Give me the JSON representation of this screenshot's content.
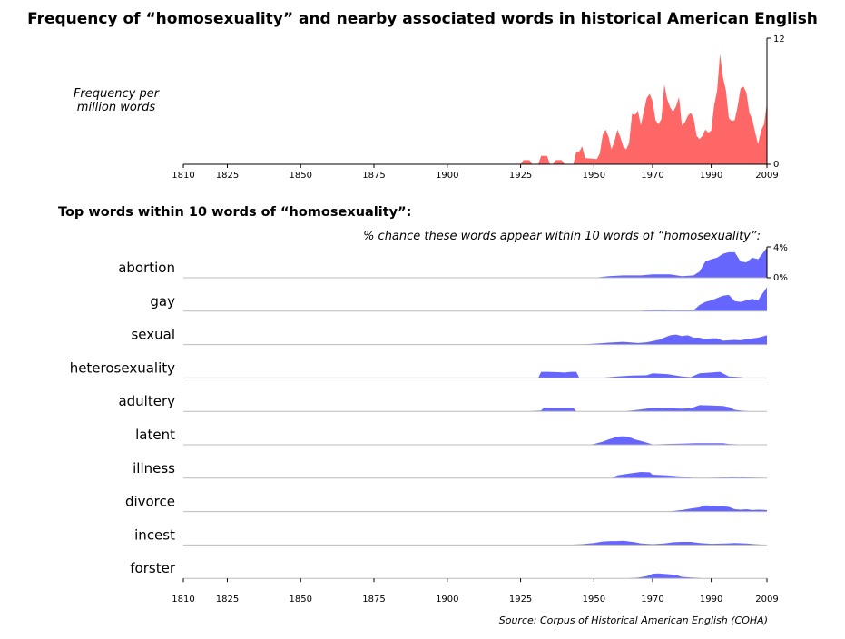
{
  "title": "Frequency of “homosexuality” and nearby associated words in historical American English",
  "top_ylabel_line1": "Frequency per",
  "top_ylabel_line2": "million words",
  "subtitle": "Top words within 10 words of “homosexuality”:",
  "pct_label": "% chance these words appear within 10 words of “homosexuality”:",
  "source": "Source: Corpus of Historical American English (COHA)",
  "colors": {
    "frequency": "#ff6666",
    "association": "#6666ff",
    "baseline": "#bbbbbb"
  },
  "chart_data": [
    {
      "type": "area",
      "xlim": [
        1810,
        2009
      ],
      "ylim": [
        0,
        12
      ],
      "x_ticks": [
        1810,
        1825,
        1850,
        1875,
        1900,
        1925,
        1950,
        1970,
        1990,
        2009
      ],
      "y_ticks": [
        "0",
        "12"
      ],
      "series": [
        {
          "points": [
            [
              1810,
              0
            ],
            [
              1925,
              0
            ],
            [
              1926,
              0.4
            ],
            [
              1928,
              0.4
            ],
            [
              1929,
              0
            ],
            [
              1931,
              0
            ],
            [
              1932,
              0.8
            ],
            [
              1934,
              0.8
            ],
            [
              1935,
              0
            ],
            [
              1936,
              0
            ],
            [
              1937,
              0.4
            ],
            [
              1939,
              0.4
            ],
            [
              1940,
              0
            ],
            [
              1943,
              0
            ],
            [
              1944,
              1.2
            ],
            [
              1945,
              1.2
            ],
            [
              1946,
              1.7
            ],
            [
              1947,
              0.6
            ],
            [
              1951,
              0.5
            ],
            [
              1952,
              1
            ],
            [
              1953,
              2.8
            ],
            [
              1954,
              3.3
            ],
            [
              1955,
              2.6
            ],
            [
              1956,
              1.4
            ],
            [
              1957,
              2.2
            ],
            [
              1958,
              3.3
            ],
            [
              1959,
              2.6
            ],
            [
              1960,
              1.7
            ],
            [
              1961,
              1.4
            ],
            [
              1962,
              2
            ],
            [
              1963,
              4.8
            ],
            [
              1964,
              4.7
            ],
            [
              1965,
              5.1
            ],
            [
              1966,
              3.7
            ],
            [
              1967,
              5
            ],
            [
              1968,
              6.3
            ],
            [
              1969,
              6.7
            ],
            [
              1970,
              6
            ],
            [
              1971,
              4.2
            ],
            [
              1972,
              3.8
            ],
            [
              1973,
              4.3
            ],
            [
              1974,
              7.6
            ],
            [
              1975,
              6.2
            ],
            [
              1976,
              5.4
            ],
            [
              1977,
              5
            ],
            [
              1978,
              5.5
            ],
            [
              1979,
              6.4
            ],
            [
              1980,
              3.7
            ],
            [
              1981,
              4
            ],
            [
              1982,
              4.6
            ],
            [
              1983,
              4.9
            ],
            [
              1984,
              4.4
            ],
            [
              1985,
              2.7
            ],
            [
              1986,
              2.4
            ],
            [
              1987,
              2.7
            ],
            [
              1988,
              3.3
            ],
            [
              1989,
              3
            ],
            [
              1990,
              3.2
            ],
            [
              1991,
              5.6
            ],
            [
              1992,
              7
            ],
            [
              1993,
              10.5
            ],
            [
              1994,
              8.3
            ],
            [
              1995,
              7
            ],
            [
              1996,
              4.4
            ],
            [
              1997,
              4.1
            ],
            [
              1998,
              4.2
            ],
            [
              1999,
              5.5
            ],
            [
              2000,
              7.2
            ],
            [
              2001,
              7.4
            ],
            [
              2002,
              6.8
            ],
            [
              2003,
              4.9
            ],
            [
              2004,
              4.3
            ],
            [
              2005,
              3
            ],
            [
              2006,
              1.9
            ],
            [
              2007,
              3.2
            ],
            [
              2008,
              3.8
            ],
            [
              2009,
              5.8
            ]
          ]
        }
      ]
    },
    {
      "type": "area",
      "xlim": [
        1810,
        2009
      ],
      "ylim": [
        0,
        4
      ],
      "scale_labels": [
        "4%",
        "0%"
      ],
      "x_ticks": [
        1810,
        1825,
        1850,
        1875,
        1900,
        1925,
        1950,
        1970,
        1990,
        2009
      ],
      "series": [
        {
          "name": "abortion",
          "points": [
            [
              1950,
              0
            ],
            [
              1955,
              0.2
            ],
            [
              1960,
              0.3
            ],
            [
              1966,
              0.3
            ],
            [
              1970,
              0.45
            ],
            [
              1976,
              0.45
            ],
            [
              1980,
              0.2
            ],
            [
              1984,
              0.3
            ],
            [
              1986,
              0.8
            ],
            [
              1988,
              2.1
            ],
            [
              1990,
              2.4
            ],
            [
              1992,
              2.6
            ],
            [
              1994,
              3.1
            ],
            [
              1996,
              3.3
            ],
            [
              1998,
              3.3
            ],
            [
              2000,
              2.1
            ],
            [
              2002,
              2
            ],
            [
              2004,
              2.6
            ],
            [
              2006,
              2.4
            ],
            [
              2007,
              2.9
            ],
            [
              2009,
              3.9
            ]
          ]
        },
        {
          "name": "gay",
          "points": [
            [
              1955,
              0
            ],
            [
              1960,
              0
            ],
            [
              1965,
              0
            ],
            [
              1968,
              0.1
            ],
            [
              1970,
              0.15
            ],
            [
              1974,
              0.15
            ],
            [
              1978,
              0.1
            ],
            [
              1984,
              0.1
            ],
            [
              1986,
              0.8
            ],
            [
              1988,
              1.2
            ],
            [
              1990,
              1.4
            ],
            [
              1992,
              1.7
            ],
            [
              1994,
              2
            ],
            [
              1996,
              2.1
            ],
            [
              1998,
              1.3
            ],
            [
              2000,
              1.2
            ],
            [
              2002,
              1.4
            ],
            [
              2004,
              1.6
            ],
            [
              2006,
              1.4
            ],
            [
              2007,
              2
            ],
            [
              2009,
              3.1
            ]
          ]
        },
        {
          "name": "sexual",
          "points": [
            [
              1945,
              0
            ],
            [
              1952,
              0.15
            ],
            [
              1955,
              0.25
            ],
            [
              1960,
              0.35
            ],
            [
              1965,
              0.2
            ],
            [
              1968,
              0.3
            ],
            [
              1972,
              0.6
            ],
            [
              1976,
              1.2
            ],
            [
              1978,
              1.3
            ],
            [
              1980,
              1.1
            ],
            [
              1982,
              1.2
            ],
            [
              1984,
              0.9
            ],
            [
              1986,
              0.9
            ],
            [
              1988,
              0.7
            ],
            [
              1990,
              0.8
            ],
            [
              1992,
              0.8
            ],
            [
              1994,
              0.5
            ],
            [
              1996,
              0.55
            ],
            [
              1998,
              0.6
            ],
            [
              2000,
              0.55
            ],
            [
              2002,
              0.7
            ],
            [
              2006,
              0.9
            ],
            [
              2009,
              1.2
            ]
          ]
        },
        {
          "name": "heterosexuality",
          "points": [
            [
              1931,
              0
            ],
            [
              1932,
              0.8
            ],
            [
              1934,
              0.8
            ],
            [
              1938,
              0.75
            ],
            [
              1940,
              0.7
            ],
            [
              1942,
              0.8
            ],
            [
              1944,
              0.8
            ],
            [
              1945,
              0
            ],
            [
              1952,
              0
            ],
            [
              1958,
              0.2
            ],
            [
              1963,
              0.3
            ],
            [
              1968,
              0.35
            ],
            [
              1970,
              0.6
            ],
            [
              1975,
              0.5
            ],
            [
              1980,
              0.2
            ],
            [
              1983,
              0.1
            ],
            [
              1986,
              0.6
            ],
            [
              1990,
              0.7
            ],
            [
              1993,
              0.8
            ],
            [
              1996,
              0.2
            ],
            [
              2000,
              0.1
            ],
            [
              2002,
              0
            ]
          ]
        },
        {
          "name": "adultery",
          "points": [
            [
              1926,
              0
            ],
            [
              1932,
              0.1
            ],
            [
              1933,
              0.5
            ],
            [
              1935,
              0.45
            ],
            [
              1940,
              0.45
            ],
            [
              1943,
              0.45
            ],
            [
              1944,
              0
            ],
            [
              1955,
              0
            ],
            [
              1960,
              0
            ],
            [
              1965,
              0.2
            ],
            [
              1970,
              0.45
            ],
            [
              1975,
              0.4
            ],
            [
              1980,
              0.35
            ],
            [
              1983,
              0.4
            ],
            [
              1986,
              0.8
            ],
            [
              1990,
              0.75
            ],
            [
              1994,
              0.7
            ],
            [
              1996,
              0.55
            ],
            [
              1998,
              0.2
            ],
            [
              2000,
              0.1
            ],
            [
              2004,
              0
            ]
          ]
        },
        {
          "name": "latent",
          "points": [
            [
              1948,
              0
            ],
            [
              1950,
              0.1
            ],
            [
              1953,
              0.4
            ],
            [
              1955,
              0.7
            ],
            [
              1958,
              1.05
            ],
            [
              1960,
              1.1
            ],
            [
              1962,
              1
            ],
            [
              1964,
              0.7
            ],
            [
              1967,
              0.4
            ],
            [
              1970,
              0.05
            ],
            [
              1975,
              0.1
            ],
            [
              1980,
              0.15
            ],
            [
              1985,
              0.2
            ],
            [
              1990,
              0.2
            ],
            [
              1994,
              0.2
            ],
            [
              1996,
              0.1
            ],
            [
              2000,
              0.05
            ],
            [
              2002,
              0
            ]
          ]
        },
        {
          "name": "illness",
          "points": [
            [
              1956,
              0
            ],
            [
              1958,
              0.35
            ],
            [
              1962,
              0.6
            ],
            [
              1966,
              0.8
            ],
            [
              1969,
              0.75
            ],
            [
              1970,
              0.45
            ],
            [
              1975,
              0.35
            ],
            [
              1980,
              0.2
            ],
            [
              1985,
              0
            ],
            [
              1990,
              0.05
            ],
            [
              1995,
              0.1
            ],
            [
              1998,
              0.15
            ],
            [
              2002,
              0.1
            ],
            [
              2009,
              0
            ]
          ]
        },
        {
          "name": "divorce",
          "points": [
            [
              1975,
              0
            ],
            [
              1980,
              0.2
            ],
            [
              1983,
              0.4
            ],
            [
              1986,
              0.55
            ],
            [
              1988,
              0.8
            ],
            [
              1990,
              0.75
            ],
            [
              1994,
              0.7
            ],
            [
              1996,
              0.6
            ],
            [
              1998,
              0.3
            ],
            [
              2000,
              0.25
            ],
            [
              2002,
              0.3
            ],
            [
              2004,
              0.2
            ],
            [
              2006,
              0.25
            ],
            [
              2009,
              0.2
            ]
          ]
        },
        {
          "name": "incest",
          "points": [
            [
              1940,
              0
            ],
            [
              1946,
              0.1
            ],
            [
              1950,
              0.25
            ],
            [
              1953,
              0.45
            ],
            [
              1956,
              0.5
            ],
            [
              1958,
              0.5
            ],
            [
              1960,
              0.55
            ],
            [
              1962,
              0.45
            ],
            [
              1964,
              0.35
            ],
            [
              1966,
              0.2
            ],
            [
              1970,
              0.1
            ],
            [
              1974,
              0.2
            ],
            [
              1977,
              0.35
            ],
            [
              1980,
              0.4
            ],
            [
              1983,
              0.4
            ],
            [
              1986,
              0.25
            ],
            [
              1990,
              0.15
            ],
            [
              1995,
              0.2
            ],
            [
              1998,
              0.25
            ],
            [
              2002,
              0.2
            ],
            [
              2005,
              0.1
            ],
            [
              2009,
              0
            ]
          ]
        },
        {
          "name": "forster",
          "points": [
            [
              1960,
              0
            ],
            [
              1965,
              0.1
            ],
            [
              1968,
              0.3
            ],
            [
              1970,
              0.6
            ],
            [
              1972,
              0.65
            ],
            [
              1975,
              0.55
            ],
            [
              1978,
              0.45
            ],
            [
              1980,
              0.2
            ],
            [
              1984,
              0.1
            ],
            [
              1988,
              0
            ]
          ]
        }
      ]
    }
  ]
}
